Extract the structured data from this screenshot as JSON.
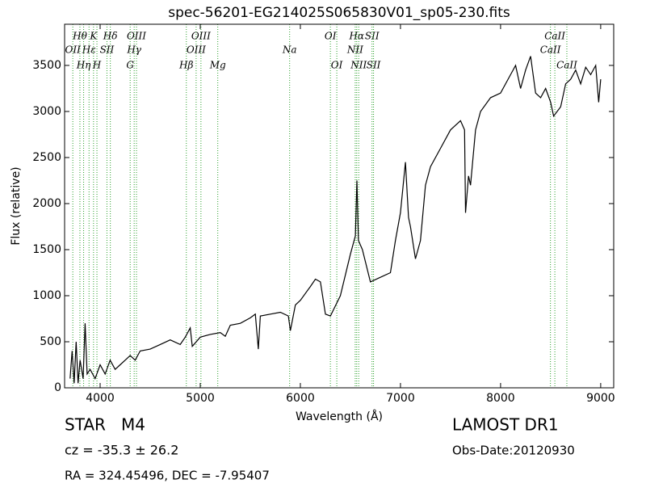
{
  "chart_data": {
    "type": "line",
    "title": "spec-56201-EG214025S065830V01_sp05-230.fits",
    "x_label": "Wavelength (Å)",
    "y_label": "Flux (relative)",
    "xlim": [
      3645,
      9130
    ],
    "ylim": [
      0,
      3947
    ],
    "xticks": [
      4000,
      5000,
      6000,
      7000,
      8000,
      9000
    ],
    "yticks": [
      0,
      500,
      1000,
      1500,
      2000,
      2500,
      3000,
      3500
    ],
    "series": [
      {
        "color": "#000000",
        "x": [
          3700,
          3720,
          3740,
          3760,
          3780,
          3800,
          3830,
          3850,
          3870,
          3900,
          3950,
          4000,
          4050,
          4100,
          4150,
          4200,
          4250,
          4300,
          4350,
          4400,
          4500,
          4600,
          4700,
          4800,
          4850,
          4900,
          4920,
          5000,
          5100,
          5200,
          5250,
          5300,
          5400,
          5500,
          5550,
          5580,
          5600,
          5700,
          5800,
          5880,
          5900,
          5950,
          6000,
          6100,
          6150,
          6200,
          6250,
          6300,
          6400,
          6500,
          6550,
          6565,
          6580,
          6620,
          6700,
          6800,
          6900,
          6950,
          7000,
          7050,
          7080,
          7100,
          7150,
          7200,
          7250,
          7300,
          7400,
          7500,
          7550,
          7600,
          7640,
          7650,
          7680,
          7700,
          7750,
          7800,
          7900,
          8000,
          8100,
          8150,
          8200,
          8250,
          8300,
          8350,
          8400,
          8450,
          8500,
          8530,
          8600,
          8650,
          8700,
          8750,
          8800,
          8850,
          8900,
          8950,
          8980,
          9000
        ],
        "values": [
          100,
          400,
          50,
          500,
          50,
          300,
          100,
          700,
          150,
          200,
          100,
          250,
          150,
          300,
          200,
          250,
          300,
          350,
          300,
          400,
          420,
          470,
          520,
          470,
          550,
          650,
          450,
          550,
          580,
          600,
          560,
          680,
          700,
          760,
          800,
          420,
          780,
          800,
          820,
          780,
          620,
          900,
          950,
          1100,
          1180,
          1150,
          800,
          780,
          1000,
          1450,
          1650,
          2250,
          1600,
          1500,
          1150,
          1200,
          1250,
          1600,
          1900,
          2450,
          1850,
          1750,
          1400,
          1600,
          2200,
          2400,
          2600,
          2800,
          2850,
          2900,
          2800,
          1900,
          2300,
          2200,
          2800,
          3000,
          3150,
          3200,
          3400,
          3500,
          3250,
          3450,
          3600,
          3200,
          3150,
          3250,
          3100,
          2950,
          3050,
          3300,
          3350,
          3450,
          3300,
          3480,
          3400,
          3500,
          3100,
          3350
        ]
      }
    ],
    "annotations": [
      {
        "label": "Hθ",
        "x": 3798
      },
      {
        "label": "K",
        "x": 3934
      },
      {
        "label": "Hδ",
        "x": 4102
      },
      {
        "label": "OIII",
        "x": 4363
      },
      {
        "label": "OIII",
        "x": 5007
      },
      {
        "label": "OI",
        "x": 6300
      },
      {
        "label": "Hα",
        "x": 6563
      },
      {
        "label": "SII",
        "x": 6716
      },
      {
        "label": "CaII",
        "x": 8542
      },
      {
        "label": "OII",
        "x": 3727
      },
      {
        "label": "Hε",
        "x": 3889
      },
      {
        "label": "SII",
        "x": 4068
      },
      {
        "label": "Hγ",
        "x": 4340
      },
      {
        "label": "OIII",
        "x": 4959
      },
      {
        "label": "Na",
        "x": 5893
      },
      {
        "label": "NII",
        "x": 6548
      },
      {
        "label": "CaII",
        "x": 8498
      },
      {
        "label": "Hη",
        "x": 3835
      },
      {
        "label": "H",
        "x": 3968
      },
      {
        "label": "G",
        "x": 4300
      },
      {
        "label": "Hβ",
        "x": 4861
      },
      {
        "label": "Mg",
        "x": 5175
      },
      {
        "label": "OI",
        "x": 6364
      },
      {
        "label": "NII",
        "x": 6583
      },
      {
        "label": "SII",
        "x": 6731
      },
      {
        "label": "CaII",
        "x": 8662
      }
    ],
    "info": {
      "class": "STAR   M4",
      "cz": "cz = -35.3 ± 26.2",
      "coords": "RA = 324.45496, DEC = -7.95407",
      "survey": "LAMOST DR1",
      "obs_date": "Obs-Date:20120930"
    }
  }
}
